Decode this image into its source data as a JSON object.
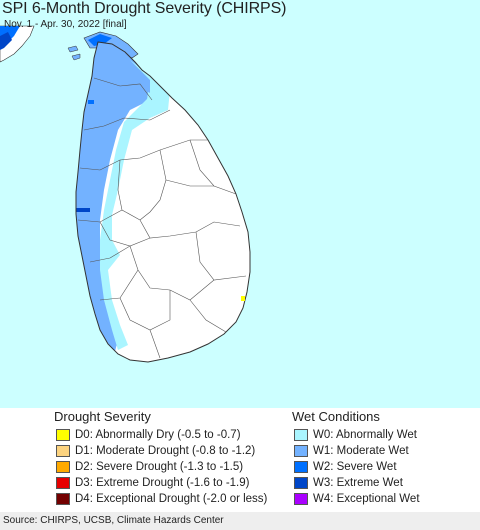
{
  "map": {
    "title": "SPI 6-Month Drought Severity (CHIRPS)",
    "subtitle": "Nov. 1 - Apr. 30, 2022 [final]",
    "colors": {
      "ocean": "#ccffff",
      "land": "#ffffff",
      "border": "#333333"
    }
  },
  "legend": {
    "drought": {
      "title": "Drought Severity",
      "items": [
        {
          "code": "D0",
          "label": "D0: Abnormally Dry (-0.5 to -0.7)",
          "color": "#ffff00"
        },
        {
          "code": "D1",
          "label": "D1: Moderate Drought (-0.8 to -1.2)",
          "color": "#fcd37f"
        },
        {
          "code": "D2",
          "label": "D2: Severe Drought (-1.3 to -1.5)",
          "color": "#ffaa00"
        },
        {
          "code": "D3",
          "label": "D3: Extreme Drought (-1.6 to -1.9)",
          "color": "#e60000"
        },
        {
          "code": "D4",
          "label": "D4: Exceptional Drought (-2.0 or less)",
          "color": "#730000"
        }
      ]
    },
    "wet": {
      "title": "Wet Conditions",
      "items": [
        {
          "code": "W0",
          "label": "W0: Abnormally Wet",
          "color": "#aaf5ff"
        },
        {
          "code": "W1",
          "label": "W1: Moderate Wet",
          "color": "#73b2ff"
        },
        {
          "code": "W2",
          "label": "W2: Severe Wet",
          "color": "#0070ff"
        },
        {
          "code": "W3",
          "label": "W3: Extreme Wet",
          "color": "#0046c8"
        },
        {
          "code": "W4",
          "label": "W4: Exceptional Wet",
          "color": "#aa00ff"
        }
      ]
    }
  },
  "footer": {
    "source": "Source: CHIRPS, UCSB, Climate Hazards Center"
  }
}
